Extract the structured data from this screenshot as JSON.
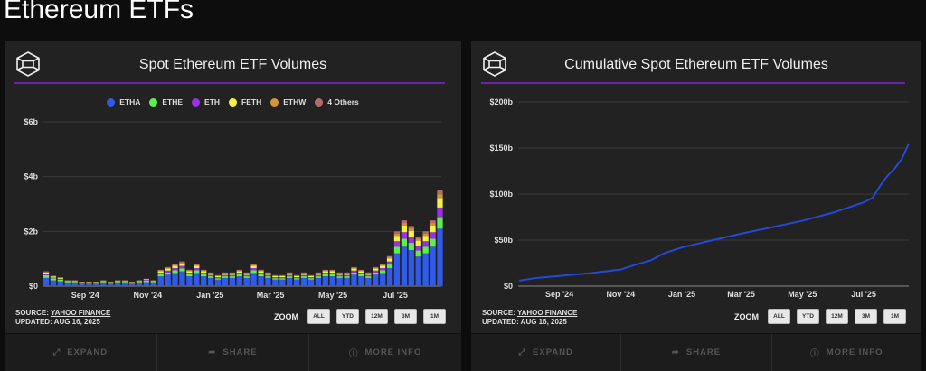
{
  "page": {
    "title": "Ethereum ETFs"
  },
  "colors": {
    "ETHA": "#2f5be8",
    "ETHE": "#5ef04a",
    "ETH": "#9b2ee6",
    "FETH": "#f2f244",
    "ETHW": "#d4953a",
    "4 Others": "#b86a6a",
    "accent_rule": "#6a22a8",
    "line": "#2448d8"
  },
  "common": {
    "source_label": "SOURCE:",
    "source_link": "YAHOO FINANCE",
    "updated": "UPDATED: AUG 16, 2025",
    "zoom_label": "ZOOM",
    "zoom_buttons": [
      "ALL",
      "YTD",
      "12M",
      "3M",
      "1M"
    ],
    "actions": [
      {
        "label": "EXPAND",
        "icon": "expand-icon"
      },
      {
        "label": "SHARE",
        "icon": "share-icon"
      },
      {
        "label": "MORE INFO",
        "icon": "info-icon"
      }
    ]
  },
  "chart_data": [
    {
      "type": "bar",
      "stacked": true,
      "title": "Spot Ethereum ETF Volumes",
      "legend_position": "top",
      "grid": true,
      "y_ticks": [
        "$0",
        "$2b",
        "$4b",
        "$6b"
      ],
      "ylim": [
        0,
        6
      ],
      "unit": "$b",
      "x_ticks": [
        {
          "date": "2024-09-01",
          "label": "Sep '24"
        },
        {
          "date": "2024-11-01",
          "label": "Nov '24"
        },
        {
          "date": "2025-01-01",
          "label": "Jan '25"
        },
        {
          "date": "2025-03-01",
          "label": "Mar '25"
        },
        {
          "date": "2025-05-01",
          "label": "May '25"
        },
        {
          "date": "2025-07-01",
          "label": "Jul '25"
        }
      ],
      "xlim": [
        "2024-07-22",
        "2025-08-15"
      ],
      "x": [
        "2024-07-22",
        "2024-07-29",
        "2024-08-05",
        "2024-08-12",
        "2024-08-19",
        "2024-08-26",
        "2024-09-02",
        "2024-09-09",
        "2024-09-16",
        "2024-09-23",
        "2024-09-30",
        "2024-10-07",
        "2024-10-14",
        "2024-10-21",
        "2024-10-28",
        "2024-11-04",
        "2024-11-11",
        "2024-11-18",
        "2024-11-25",
        "2024-12-02",
        "2024-12-09",
        "2024-12-16",
        "2024-12-23",
        "2024-12-30",
        "2025-01-06",
        "2025-01-13",
        "2025-01-20",
        "2025-01-27",
        "2025-02-03",
        "2025-02-10",
        "2025-02-17",
        "2025-02-24",
        "2025-03-03",
        "2025-03-10",
        "2025-03-17",
        "2025-03-24",
        "2025-03-31",
        "2025-04-07",
        "2025-04-14",
        "2025-04-21",
        "2025-04-28",
        "2025-05-05",
        "2025-05-12",
        "2025-05-19",
        "2025-05-26",
        "2025-06-02",
        "2025-06-09",
        "2025-06-16",
        "2025-06-23",
        "2025-06-30",
        "2025-07-07",
        "2025-07-14",
        "2025-07-21",
        "2025-07-28",
        "2025-08-04",
        "2025-08-11"
      ],
      "series": [
        {
          "name": "ETHA",
          "values": [
            0.3,
            0.21,
            0.18,
            0.12,
            0.12,
            0.09,
            0.09,
            0.09,
            0.12,
            0.09,
            0.12,
            0.12,
            0.09,
            0.12,
            0.15,
            0.12,
            0.36,
            0.42,
            0.48,
            0.54,
            0.36,
            0.48,
            0.36,
            0.3,
            0.24,
            0.3,
            0.3,
            0.36,
            0.3,
            0.48,
            0.36,
            0.3,
            0.24,
            0.24,
            0.3,
            0.24,
            0.3,
            0.24,
            0.3,
            0.36,
            0.36,
            0.3,
            0.3,
            0.42,
            0.36,
            0.3,
            0.42,
            0.48,
            0.66,
            1.2,
            1.44,
            1.32,
            1.08,
            1.2,
            1.44,
            2.1
          ]
        },
        {
          "name": "ETHE",
          "values": [
            0.1,
            0.07,
            0.06,
            0.04,
            0.04,
            0.03,
            0.03,
            0.03,
            0.04,
            0.03,
            0.04,
            0.04,
            0.03,
            0.04,
            0.05,
            0.04,
            0.07,
            0.08,
            0.1,
            0.11,
            0.07,
            0.1,
            0.07,
            0.06,
            0.05,
            0.06,
            0.06,
            0.07,
            0.06,
            0.1,
            0.07,
            0.06,
            0.05,
            0.05,
            0.06,
            0.05,
            0.06,
            0.05,
            0.06,
            0.07,
            0.07,
            0.06,
            0.06,
            0.08,
            0.07,
            0.06,
            0.08,
            0.1,
            0.13,
            0.24,
            0.29,
            0.26,
            0.22,
            0.24,
            0.29,
            0.42
          ]
        },
        {
          "name": "ETH",
          "values": [
            0.05,
            0.035,
            0.03,
            0.02,
            0.02,
            0.015,
            0.015,
            0.015,
            0.02,
            0.015,
            0.02,
            0.02,
            0.015,
            0.02,
            0.025,
            0.02,
            0.06,
            0.07,
            0.08,
            0.09,
            0.06,
            0.08,
            0.06,
            0.05,
            0.04,
            0.05,
            0.05,
            0.06,
            0.05,
            0.08,
            0.06,
            0.05,
            0.04,
            0.04,
            0.05,
            0.04,
            0.05,
            0.04,
            0.05,
            0.06,
            0.06,
            0.05,
            0.05,
            0.07,
            0.06,
            0.05,
            0.07,
            0.08,
            0.11,
            0.2,
            0.24,
            0.22,
            0.18,
            0.2,
            0.24,
            0.35
          ]
        },
        {
          "name": "FETH",
          "values": [
            0.05,
            0.035,
            0.03,
            0.02,
            0.02,
            0.015,
            0.015,
            0.015,
            0.02,
            0.015,
            0.02,
            0.02,
            0.015,
            0.02,
            0.025,
            0.02,
            0.06,
            0.07,
            0.08,
            0.09,
            0.06,
            0.08,
            0.06,
            0.05,
            0.04,
            0.05,
            0.05,
            0.06,
            0.05,
            0.08,
            0.06,
            0.05,
            0.04,
            0.04,
            0.05,
            0.04,
            0.05,
            0.04,
            0.05,
            0.06,
            0.06,
            0.05,
            0.05,
            0.07,
            0.06,
            0.05,
            0.07,
            0.08,
            0.11,
            0.2,
            0.24,
            0.22,
            0.18,
            0.2,
            0.24,
            0.35
          ]
        },
        {
          "name": "ETHW",
          "values": [
            0.02,
            0.014,
            0.012,
            0.008,
            0.008,
            0.006,
            0.006,
            0.006,
            0.008,
            0.006,
            0.008,
            0.008,
            0.006,
            0.008,
            0.01,
            0.008,
            0.024,
            0.028,
            0.032,
            0.036,
            0.024,
            0.032,
            0.024,
            0.02,
            0.016,
            0.02,
            0.02,
            0.024,
            0.02,
            0.032,
            0.024,
            0.02,
            0.016,
            0.016,
            0.02,
            0.016,
            0.02,
            0.016,
            0.02,
            0.024,
            0.024,
            0.02,
            0.02,
            0.028,
            0.024,
            0.02,
            0.028,
            0.032,
            0.044,
            0.08,
            0.096,
            0.088,
            0.072,
            0.08,
            0.096,
            0.14
          ]
        },
        {
          "name": "4 Others",
          "values": [
            0.02,
            0.014,
            0.012,
            0.008,
            0.008,
            0.006,
            0.006,
            0.006,
            0.008,
            0.006,
            0.008,
            0.008,
            0.006,
            0.008,
            0.01,
            0.008,
            0.024,
            0.028,
            0.032,
            0.036,
            0.024,
            0.032,
            0.024,
            0.02,
            0.016,
            0.02,
            0.02,
            0.024,
            0.02,
            0.032,
            0.024,
            0.02,
            0.016,
            0.016,
            0.02,
            0.016,
            0.02,
            0.016,
            0.02,
            0.024,
            0.024,
            0.02,
            0.02,
            0.028,
            0.024,
            0.02,
            0.028,
            0.032,
            0.044,
            0.08,
            0.096,
            0.088,
            0.072,
            0.08,
            0.096,
            0.14
          ]
        }
      ]
    },
    {
      "type": "line",
      "title": "Cumulative Spot Ethereum ETF Volumes",
      "grid": true,
      "y_ticks": [
        "$0",
        "$50b",
        "$100b",
        "$150b",
        "$200b"
      ],
      "ylim": [
        0,
        200
      ],
      "unit": "$b",
      "x_ticks": [
        {
          "date": "2024-09-01",
          "label": "Sep '24"
        },
        {
          "date": "2024-11-01",
          "label": "Nov '24"
        },
        {
          "date": "2025-01-01",
          "label": "Jan '25"
        },
        {
          "date": "2025-03-01",
          "label": "Mar '25"
        },
        {
          "date": "2025-05-01",
          "label": "May '25"
        },
        {
          "date": "2025-07-01",
          "label": "Jul '25"
        }
      ],
      "xlim": [
        "2024-07-22",
        "2025-08-15"
      ],
      "x": [
        "2024-07-23",
        "2024-08-10",
        "2024-09-01",
        "2024-10-01",
        "2024-11-01",
        "2024-11-15",
        "2024-12-01",
        "2024-12-15",
        "2025-01-01",
        "2025-02-01",
        "2025-03-01",
        "2025-04-01",
        "2025-05-01",
        "2025-06-01",
        "2025-07-01",
        "2025-07-10",
        "2025-07-18",
        "2025-07-25",
        "2025-08-01",
        "2025-08-08",
        "2025-08-15"
      ],
      "values": [
        6,
        9,
        11,
        14,
        18,
        23,
        28,
        36,
        42,
        50,
        57,
        64,
        71,
        80,
        91,
        96,
        110,
        120,
        128,
        138,
        155
      ]
    }
  ]
}
